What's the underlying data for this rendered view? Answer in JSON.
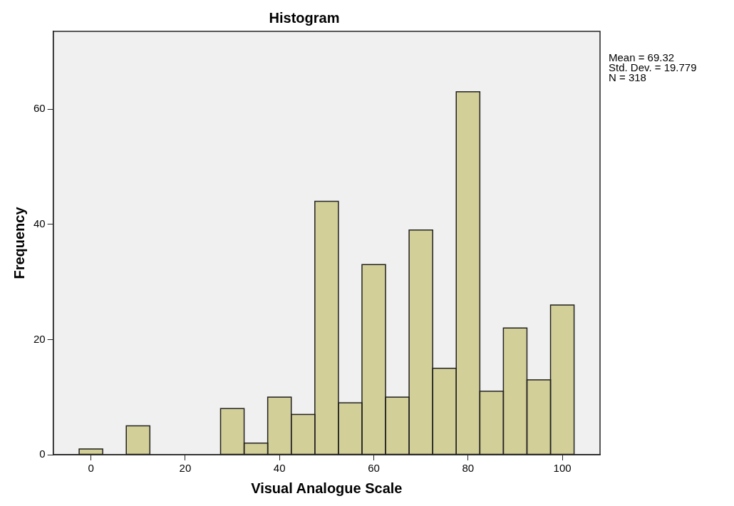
{
  "chart_data": {
    "type": "histogram",
    "title": "Histogram",
    "xlabel": "Visual Analogue Scale",
    "ylabel": "Frequency",
    "bins": [
      -2.5,
      2.5,
      7.5,
      12.5,
      17.5,
      22.5,
      27.5,
      32.5,
      37.5,
      42.5,
      47.5,
      52.5,
      57.5,
      62.5,
      67.5,
      72.5,
      77.5,
      82.5,
      87.5,
      92.5,
      97.5,
      102.5
    ],
    "values": [
      1,
      0,
      5,
      0,
      0,
      0,
      8,
      2,
      10,
      7,
      44,
      9,
      33,
      10,
      39,
      15,
      63,
      11,
      22,
      13,
      26
    ],
    "color": "#d3cf98",
    "xlim": [
      -8,
      108
    ],
    "xticks": [
      0,
      20,
      40,
      60,
      80,
      100
    ],
    "ylim": [
      0,
      73.5
    ],
    "yticks": [
      0,
      20,
      40,
      60
    ],
    "grid": false,
    "legend": false,
    "annotations": [
      "Mean = 69.32",
      "Std. Dev. = 19.779",
      "N = 318"
    ]
  }
}
